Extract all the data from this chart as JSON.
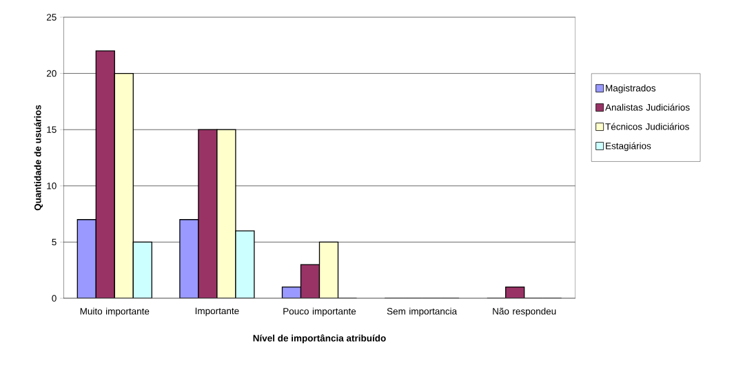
{
  "chart_data": {
    "type": "bar",
    "xlabel": "Nível de importância atribuído",
    "ylabel": "Quantidade de usuários",
    "categories": [
      "Muito importante",
      "Importante",
      "Pouco importante",
      "Sem importancia",
      "Não respondeu"
    ],
    "series": [
      {
        "name": "Magistrados",
        "color": "#9999ff",
        "values": [
          7,
          7,
          1,
          0,
          0
        ]
      },
      {
        "name": "Analistas Judiciários",
        "color": "#993366",
        "values": [
          22,
          15,
          3,
          0,
          1
        ]
      },
      {
        "name": "Técnicos Judiciários",
        "color": "#ffffcc",
        "values": [
          20,
          15,
          5,
          0,
          0
        ]
      },
      {
        "name": "Estagiários",
        "color": "#ccffff",
        "values": [
          5,
          6,
          0,
          0,
          0
        ]
      }
    ],
    "ylim": [
      0,
      25
    ],
    "yticks": [
      0,
      5,
      10,
      15,
      20,
      25
    ],
    "grid": "y",
    "legend": "right"
  }
}
